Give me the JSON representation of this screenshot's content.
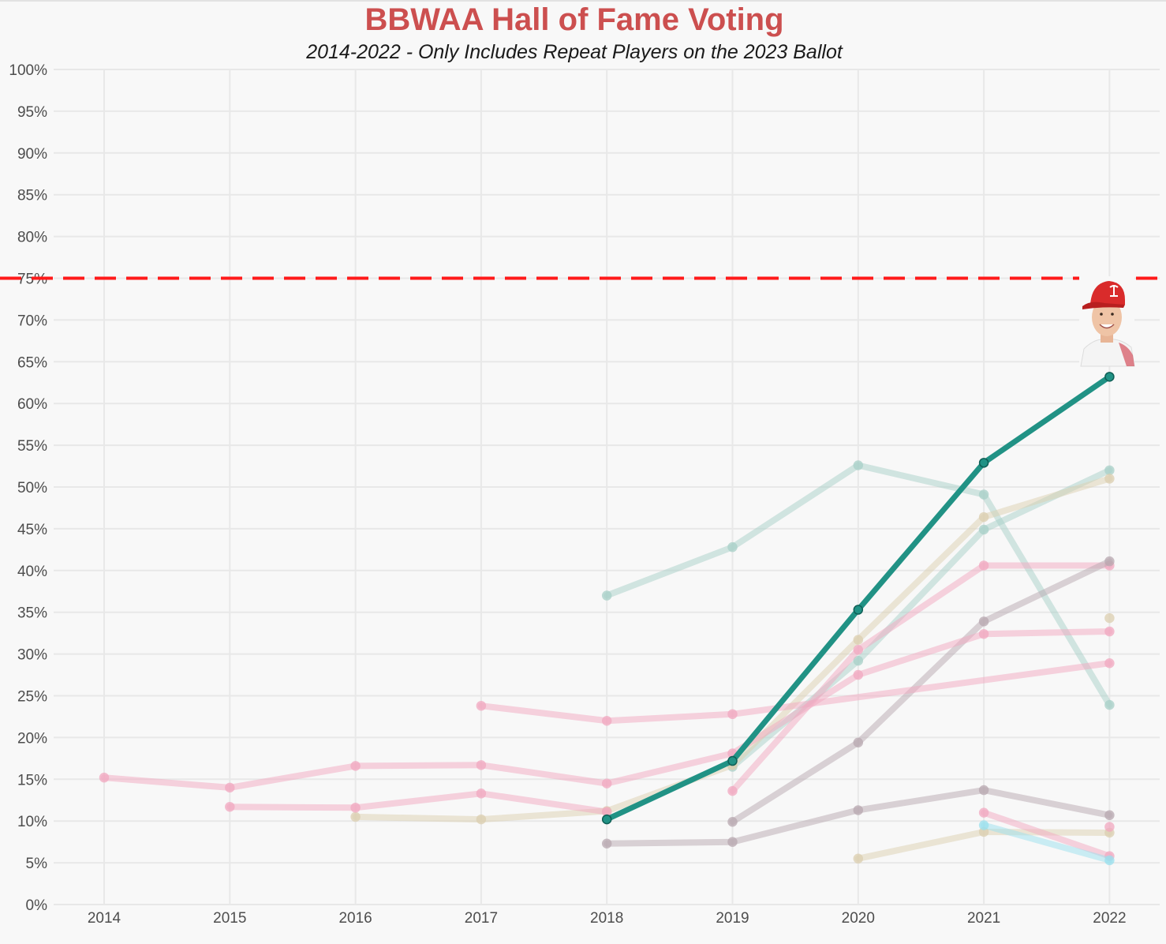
{
  "header": {
    "title": "BBWAA Hall of Fame Voting",
    "subtitle": "2014-2022 - Only Includes Repeat Players on the 2023 Ballot"
  },
  "colors": {
    "highlight": "#219285",
    "threshold": "#ff1a1a",
    "teal": "#a8d0c8",
    "pink": "#f2a8c0",
    "beige": "#dccfb0",
    "gray": "#b8a8b0",
    "cyan": "#9ae0ee",
    "gridline": "#e8e8e8"
  },
  "chart_data": {
    "type": "line",
    "title": "BBWAA Hall of Fame Voting",
    "subtitle": "2014-2022 - Only Includes Repeat Players on the 2023 Ballot",
    "xlabel": "",
    "ylabel": "",
    "x": [
      2014,
      2015,
      2016,
      2017,
      2018,
      2019,
      2020,
      2021,
      2022
    ],
    "x_tick_labels": [
      "2014",
      "2015",
      "2016",
      "2017",
      "2018",
      "2019",
      "2020",
      "2021",
      "2022"
    ],
    "ylim": [
      0,
      100
    ],
    "y_tick_labels": [
      "0%",
      "5%",
      "10%",
      "15%",
      "20%",
      "25%",
      "30%",
      "35%",
      "40%",
      "45%",
      "50%",
      "55%",
      "60%",
      "65%",
      "70%",
      "75%",
      "80%",
      "85%",
      "90%",
      "95%",
      "100%"
    ],
    "grid": true,
    "threshold": {
      "value": 75,
      "label": "75%",
      "style": "dashed"
    },
    "highlight_image": "player-headshot-cardinals-cap",
    "series": [
      {
        "name": "highlighted-player",
        "color_key": "highlight",
        "highlight": true,
        "points": [
          [
            2018,
            10.2
          ],
          [
            2019,
            17.2
          ],
          [
            2020,
            35.3
          ],
          [
            2021,
            52.9
          ],
          [
            2022,
            63.2
          ]
        ]
      },
      {
        "name": "player-a",
        "color_key": "teal",
        "points": [
          [
            2018,
            37.0
          ],
          [
            2019,
            42.8
          ],
          [
            2020,
            52.6
          ],
          [
            2021,
            49.1
          ],
          [
            2022,
            23.9
          ]
        ]
      },
      {
        "name": "player-b",
        "color_key": "teal",
        "points": [
          [
            2019,
            16.5
          ],
          [
            2020,
            29.2
          ],
          [
            2021,
            44.9
          ],
          [
            2022,
            52.0
          ]
        ]
      },
      {
        "name": "player-c",
        "color_key": "beige",
        "points": [
          [
            2016,
            10.5
          ],
          [
            2017,
            10.2
          ],
          [
            2018,
            11.2
          ],
          [
            2019,
            16.7
          ],
          [
            2020,
            31.7
          ],
          [
            2021,
            46.4
          ],
          [
            2022,
            51.0
          ]
        ]
      },
      {
        "name": "player-d",
        "color_key": "pink",
        "points": [
          [
            2019,
            13.6
          ],
          [
            2020,
            30.5
          ],
          [
            2021,
            40.6
          ],
          [
            2022,
            40.6
          ]
        ]
      },
      {
        "name": "player-e",
        "color_key": "gray",
        "points": [
          [
            2019,
            9.9
          ],
          [
            2020,
            19.4
          ],
          [
            2021,
            33.9
          ],
          [
            2022,
            41.1
          ]
        ]
      },
      {
        "name": "player-f",
        "color_key": "pink",
        "points": [
          [
            2014,
            15.2
          ],
          [
            2015,
            14.0
          ],
          [
            2016,
            16.6
          ],
          [
            2017,
            16.7
          ],
          [
            2018,
            14.5
          ],
          [
            2019,
            18.1
          ],
          [
            2020,
            27.5
          ],
          [
            2021,
            32.4
          ],
          [
            2022,
            32.7
          ]
        ]
      },
      {
        "name": "player-g",
        "color_key": "pink",
        "points": [
          [
            2017,
            23.8
          ],
          [
            2018,
            22.0
          ],
          [
            2019,
            22.8
          ],
          [
            2022,
            28.9
          ]
        ]
      },
      {
        "name": "player-h",
        "color_key": "pink",
        "points": [
          [
            2015,
            11.7
          ],
          [
            2016,
            11.6
          ],
          [
            2017,
            13.3
          ],
          [
            2018,
            11.1
          ]
        ]
      },
      {
        "name": "player-i",
        "color_key": "gray",
        "points": [
          [
            2018,
            7.3
          ],
          [
            2019,
            7.5
          ],
          [
            2020,
            11.3
          ],
          [
            2021,
            13.7
          ],
          [
            2022,
            10.7
          ]
        ]
      },
      {
        "name": "player-j",
        "color_key": "beige",
        "points": [
          [
            2020,
            5.5
          ],
          [
            2021,
            8.7
          ],
          [
            2022,
            8.6
          ]
        ]
      },
      {
        "name": "player-k",
        "color_key": "pink",
        "points": [
          [
            2021,
            11.0
          ],
          [
            2022,
            5.8
          ]
        ]
      },
      {
        "name": "player-l",
        "color_key": "cyan",
        "points": [
          [
            2021,
            9.5
          ],
          [
            2022,
            5.3
          ]
        ]
      },
      {
        "name": "player-m",
        "color_key": "beige",
        "points": [
          [
            2022,
            34.3
          ]
        ]
      },
      {
        "name": "player-n",
        "color_key": "pink",
        "points": [
          [
            2022,
            9.3
          ]
        ]
      }
    ]
  }
}
